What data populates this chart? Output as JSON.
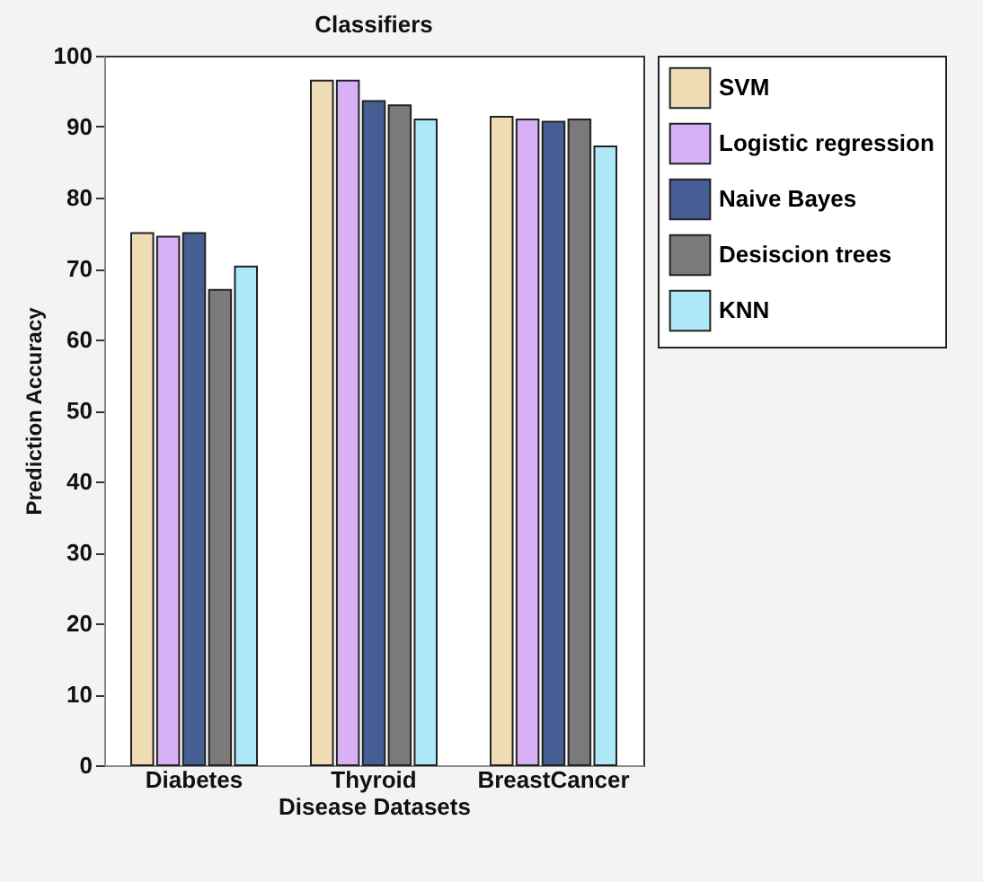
{
  "chart_data": {
    "type": "bar",
    "title": "Classifiers",
    "xlabel": "Disease Datasets",
    "ylabel": "Prediction Accuracy",
    "categories": [
      "Diabetes",
      "Thyroid",
      "BreastCancer"
    ],
    "series": [
      {
        "name": "SVM",
        "color": "#f0dcb4",
        "values": [
          75.0,
          96.5,
          91.4
        ]
      },
      {
        "name": "Logistic regression",
        "color": "#d7b0f5",
        "values": [
          74.5,
          96.5,
          91.0
        ]
      },
      {
        "name": "Naive Bayes",
        "color": "#465e94",
        "values": [
          75.0,
          93.6,
          90.7
        ]
      },
      {
        "name": "Desiscion trees",
        "color": "#7a7a7a",
        "values": [
          67.0,
          93.0,
          91.0
        ]
      },
      {
        "name": "KNN",
        "color": "#ade8f8",
        "values": [
          70.3,
          91.0,
          87.2
        ]
      }
    ],
    "ylim": [
      0,
      100
    ],
    "yticks": [
      0,
      10,
      20,
      30,
      40,
      50,
      60,
      70,
      80,
      90,
      100
    ],
    "grid": false,
    "legend": "right"
  }
}
